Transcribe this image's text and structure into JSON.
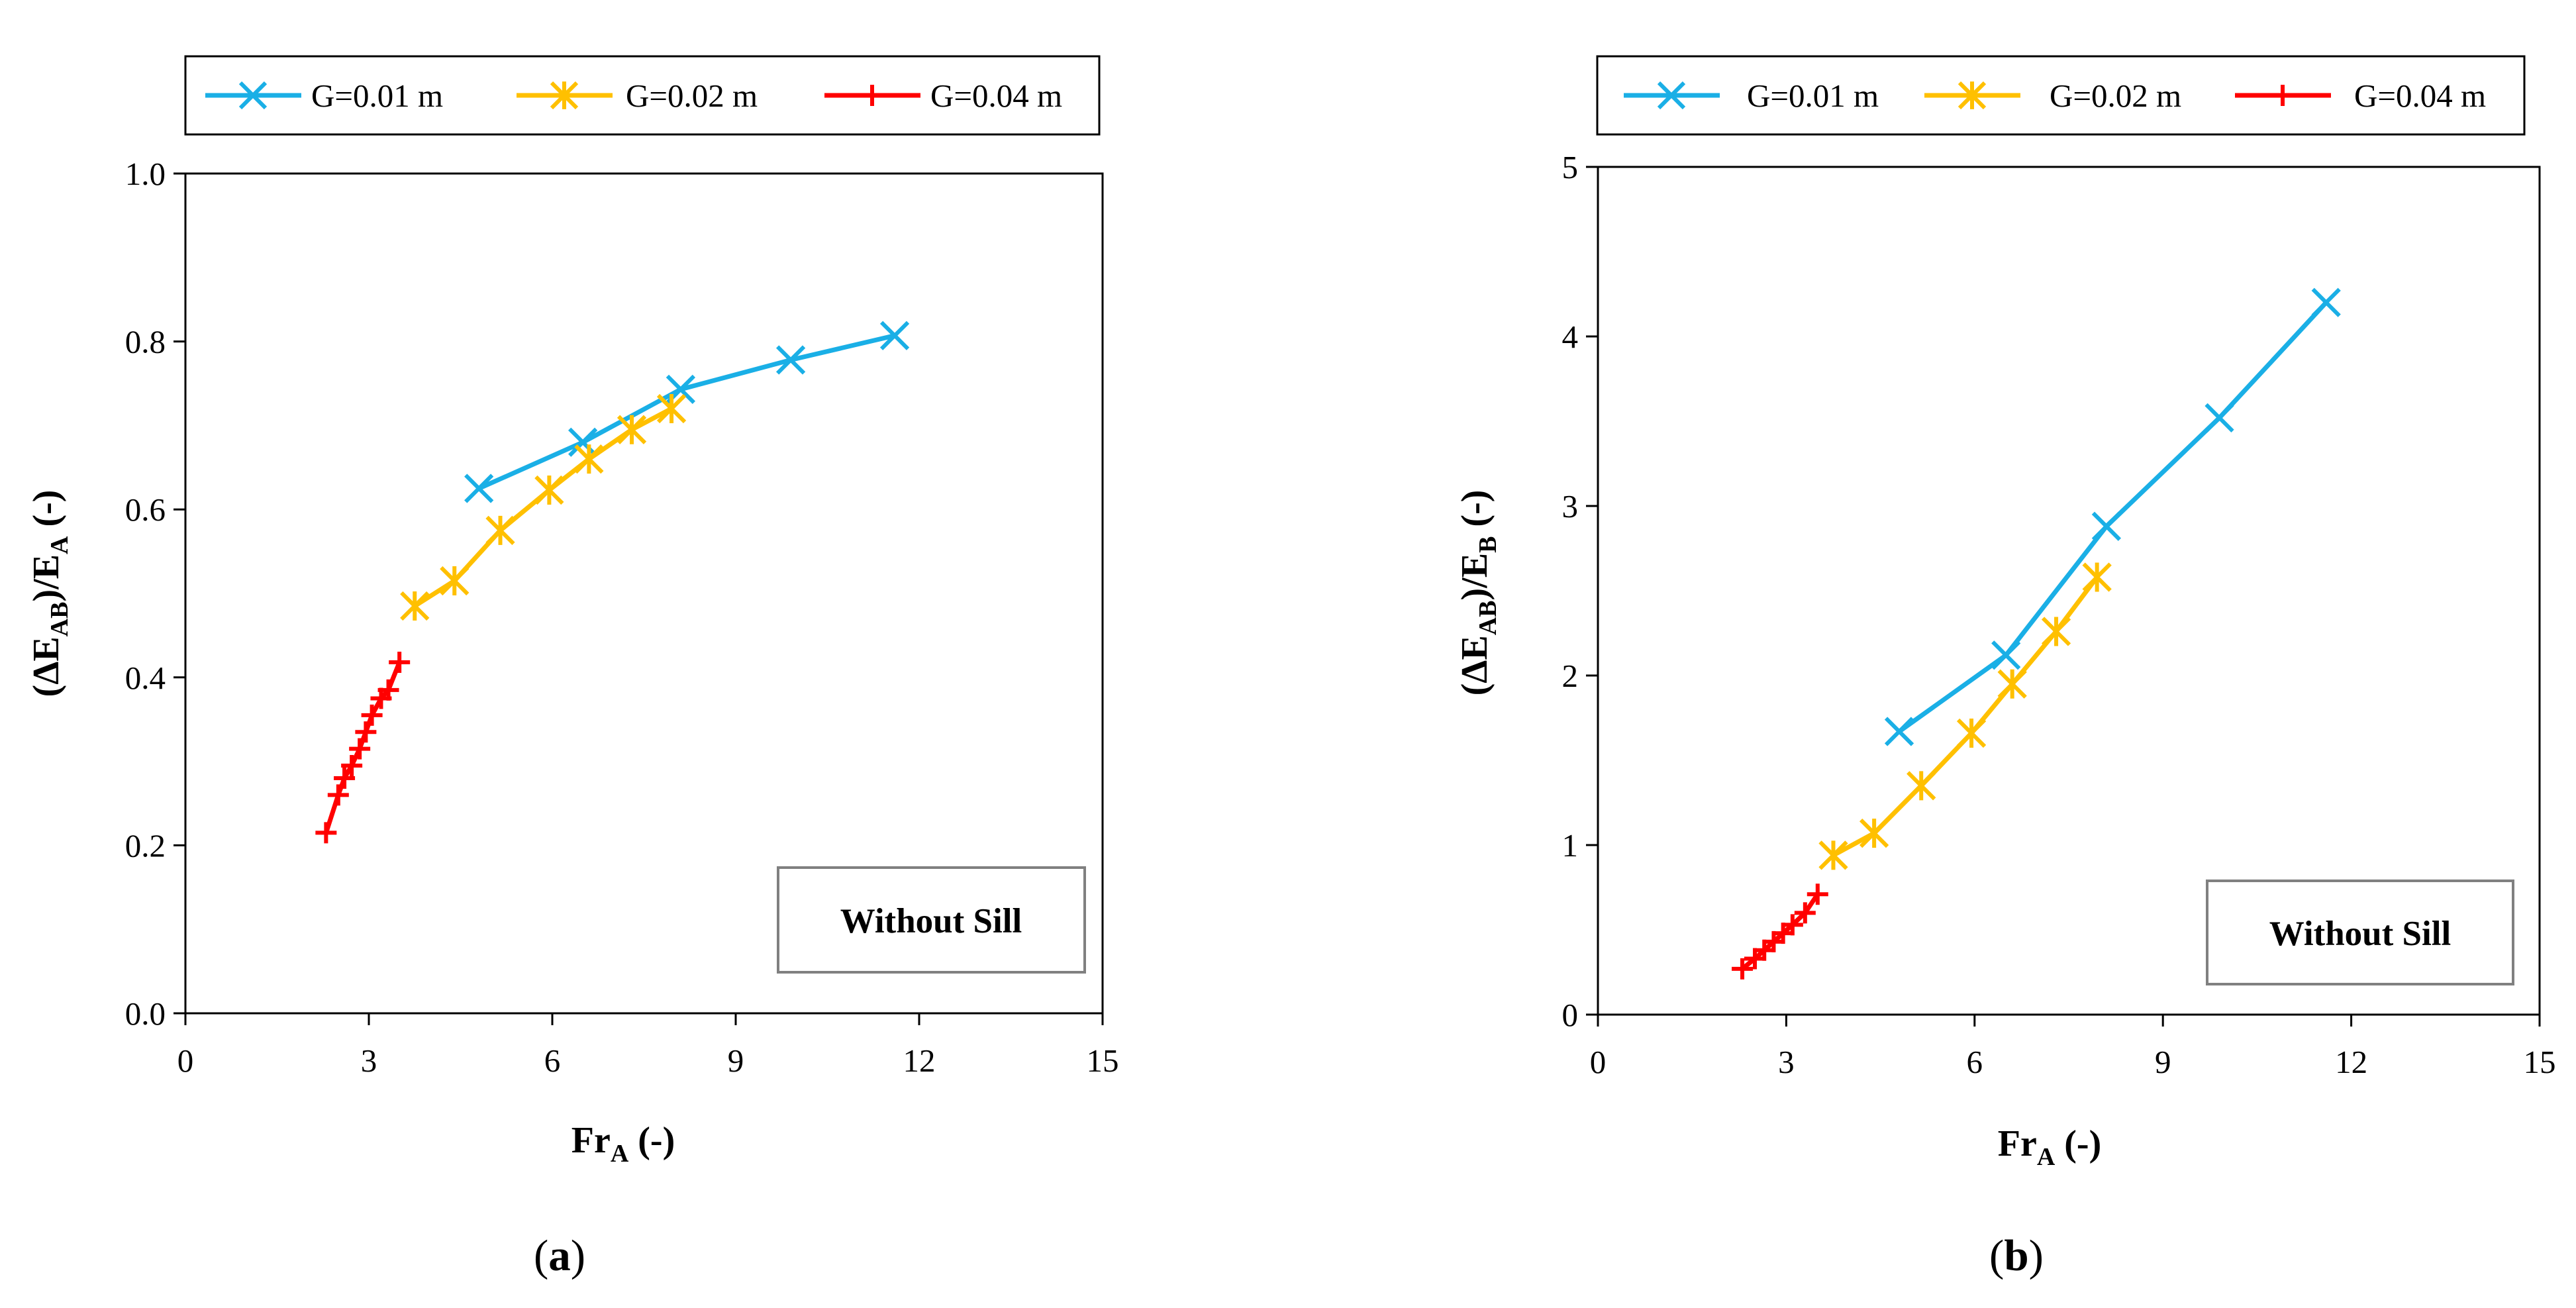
{
  "chart_data": [
    {
      "type": "line",
      "panel_label": "a",
      "xlabel": "Fr",
      "xlabel_sub": "A",
      "xlabel_suffix": " (-)",
      "ylabel_parts": [
        "(ΔE",
        "AB",
        ")/E",
        "A",
        " (-)"
      ],
      "xlim": [
        0,
        15
      ],
      "ylim": [
        0,
        1.0
      ],
      "xticks": [
        0,
        3,
        6,
        9,
        12,
        15
      ],
      "yticks": [
        0,
        0.2,
        0.4,
        0.6,
        0.8,
        1.0
      ],
      "xtick_labels": [
        "0",
        "3",
        "6",
        "9",
        "12",
        "15"
      ],
      "ytick_labels": [
        "0.0",
        "0.2",
        "0.4",
        "0.6",
        "0.8",
        "1.0"
      ],
      "annotation": "Without Sill",
      "annotation_position": "bottom-right",
      "series": [
        {
          "name": "G=0.01 m",
          "color": "#1AAFE6",
          "marker": "x",
          "x": [
            4.8,
            6.5,
            8.1,
            9.9,
            11.6
          ],
          "y": [
            0.625,
            0.68,
            0.743,
            0.778,
            0.807
          ]
        },
        {
          "name": "G=0.02 m",
          "color": "#FFC000",
          "marker": "star",
          "x": [
            3.75,
            4.4,
            5.15,
            5.95,
            6.6,
            7.3,
            7.95
          ],
          "y": [
            0.485,
            0.515,
            0.575,
            0.623,
            0.66,
            0.695,
            0.72
          ]
        },
        {
          "name": "G=0.04 m",
          "color": "#FF0000",
          "marker": "plus",
          "x": [
            2.3,
            2.5,
            2.6,
            2.72,
            2.85,
            2.95,
            3.05,
            3.2,
            3.32,
            3.5
          ],
          "y": [
            0.215,
            0.26,
            0.28,
            0.295,
            0.315,
            0.335,
            0.355,
            0.375,
            0.385,
            0.418
          ]
        }
      ]
    },
    {
      "type": "line",
      "panel_label": "b",
      "xlabel": "Fr",
      "xlabel_sub": "A",
      "xlabel_suffix": " (-)",
      "ylabel_parts": [
        "(ΔE",
        "AB",
        ")/E",
        "B",
        " (-)"
      ],
      "xlim": [
        0,
        15
      ],
      "ylim": [
        0,
        5
      ],
      "xticks": [
        0,
        3,
        6,
        9,
        12,
        15
      ],
      "yticks": [
        0,
        1,
        2,
        3,
        4,
        5
      ],
      "xtick_labels": [
        "0",
        "3",
        "6",
        "9",
        "12",
        "15"
      ],
      "ytick_labels": [
        "0",
        "1",
        "2",
        "3",
        "4",
        "5"
      ],
      "annotation": "Without Sill",
      "annotation_position": "bottom-right",
      "series": [
        {
          "name": "G=0.01 m",
          "color": "#1AAFE6",
          "marker": "x",
          "x": [
            4.8,
            6.5,
            8.1,
            9.9,
            11.6
          ],
          "y": [
            1.67,
            2.12,
            2.88,
            3.52,
            4.2
          ]
        },
        {
          "name": "G=0.02 m",
          "color": "#FFC000",
          "marker": "star",
          "x": [
            3.75,
            4.4,
            5.15,
            5.95,
            6.6,
            7.3,
            7.95
          ],
          "y": [
            0.94,
            1.07,
            1.35,
            1.66,
            1.95,
            2.26,
            2.58
          ]
        },
        {
          "name": "G=0.04 m",
          "color": "#FF0000",
          "marker": "plus",
          "x": [
            2.3,
            2.5,
            2.65,
            2.8,
            2.95,
            3.1,
            3.3,
            3.5
          ],
          "y": [
            0.27,
            0.33,
            0.38,
            0.43,
            0.48,
            0.53,
            0.6,
            0.71
          ]
        }
      ]
    }
  ]
}
